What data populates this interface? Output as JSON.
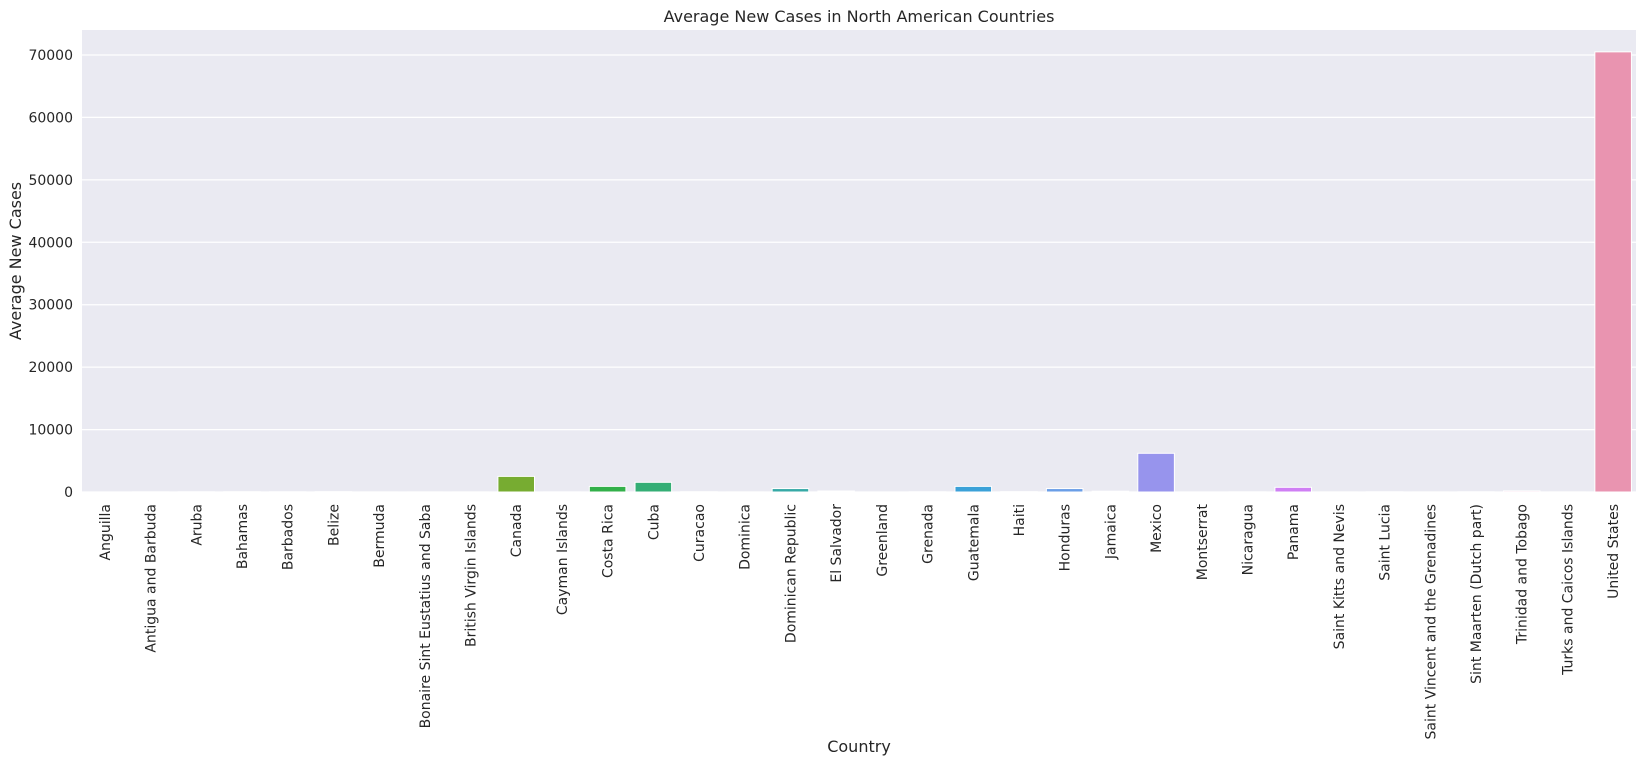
{
  "chart_data": {
    "type": "bar",
    "title": "Average New Cases in North American Countries",
    "xlabel": "Country",
    "ylabel": "Average New Cases",
    "ylim": [
      0,
      74000
    ],
    "yticks": [
      0,
      10000,
      20000,
      30000,
      40000,
      50000,
      60000,
      70000
    ],
    "grid": true,
    "categories": [
      "Anguilla",
      "Antigua and Barbuda",
      "Aruba",
      "Bahamas",
      "Barbados",
      "Belize",
      "Bermuda",
      "Bonaire Sint Eustatius and Saba",
      "British Virgin Islands",
      "Canada",
      "Cayman Islands",
      "Costa Rica",
      "Cuba",
      "Curacao",
      "Dominica",
      "Dominican Republic",
      "El Salvador",
      "Greenland",
      "Grenada",
      "Guatemala",
      "Haiti",
      "Honduras",
      "Jamaica",
      "Mexico",
      "Montserrat",
      "Nicaragua",
      "Panama",
      "Saint Kitts and Nevis",
      "Saint Lucia",
      "Saint Vincent and the Grenadines",
      "Sint Maarten (Dutch part)",
      "Trinidad and Tobago",
      "Turks and Caicos Islands",
      "United States"
    ],
    "values": [
      1,
      20,
      30,
      40,
      35,
      50,
      10,
      5,
      10,
      2500,
      15,
      900,
      1550,
      40,
      10,
      550,
      150,
      3,
      25,
      900,
      50,
      550,
      120,
      6200,
      1,
      20,
      750,
      10,
      35,
      10,
      25,
      170,
      10,
      70500
    ],
    "colors": [
      "#f77189",
      "#f7754f",
      "#e1812b",
      "#ce8f31",
      "#bd9731",
      "#ae9d31",
      "#a0a131",
      "#93a531",
      "#86a931",
      "#77ac31",
      "#5db132",
      "#33b04a",
      "#34ae75",
      "#35ac8a",
      "#36ab99",
      "#36a9a6",
      "#37a8b1",
      "#38a6bd",
      "#39a4cb",
      "#3ba1d8",
      "#50a1e4",
      "#6a9ee7",
      "#8299ea",
      "#9794ed",
      "#aa8ff0",
      "#bc89f4",
      "#cf7ff4",
      "#e46ff4",
      "#f45ef3",
      "#f463dc",
      "#f567c8",
      "#f56cb6",
      "#f66ea5",
      "#e994b0"
    ]
  }
}
